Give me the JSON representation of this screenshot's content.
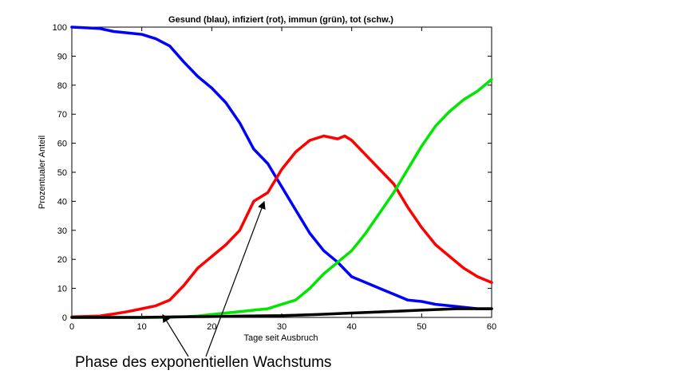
{
  "chart_data": {
    "type": "line",
    "title": "Gesund (blau), infiziert (rot), immun (grün), tot (schw.)",
    "xlabel": "Tage seit Ausbruch",
    "ylabel": "Prozentualer Anteil",
    "xlim": [
      0,
      60
    ],
    "ylim": [
      0,
      100
    ],
    "xticks": [
      0,
      10,
      20,
      30,
      40,
      50,
      60
    ],
    "yticks": [
      0,
      10,
      20,
      30,
      40,
      50,
      60,
      70,
      80,
      90,
      100
    ],
    "grid": false,
    "legend": "none",
    "series": [
      {
        "color": "#0000ff",
        "x": [
          0,
          4,
          6,
          8,
          10,
          12,
          14,
          16,
          18,
          20,
          22,
          24,
          26,
          28,
          30,
          32,
          34,
          36,
          38,
          40,
          42,
          44,
          46,
          48,
          50,
          52,
          54,
          56,
          58,
          60
        ],
        "y": [
          100,
          99.5,
          98.5,
          98,
          97.5,
          96,
          93.5,
          88,
          83,
          79,
          74,
          67,
          58,
          53,
          45,
          37,
          29,
          23,
          19,
          14,
          12,
          10,
          8,
          6,
          5.5,
          4.5,
          4,
          3.5,
          3,
          3
        ]
      },
      {
        "color": "#ff0000",
        "x": [
          0,
          4,
          6,
          8,
          10,
          12,
          14,
          16,
          18,
          20,
          22,
          24,
          26,
          28,
          30,
          32,
          34,
          36,
          38,
          39,
          40,
          42,
          44,
          46,
          48,
          50,
          52,
          54,
          56,
          58,
          60
        ],
        "y": [
          0.2,
          0.5,
          1.2,
          2,
          3,
          4,
          6,
          11,
          17,
          21,
          25,
          30,
          40,
          43,
          51,
          57,
          61,
          62.5,
          61.5,
          62.5,
          61,
          56,
          51,
          46,
          38,
          31,
          25,
          21,
          17,
          14,
          12
        ]
      },
      {
        "color": "#00e600",
        "x": [
          0,
          14,
          16,
          18,
          20,
          22,
          24,
          26,
          28,
          30,
          32,
          34,
          36,
          38,
          40,
          42,
          44,
          46,
          48,
          50,
          52,
          54,
          56,
          58,
          60
        ],
        "y": [
          0,
          0,
          0.2,
          0.5,
          1,
          1.5,
          2,
          2.5,
          3,
          4.5,
          6,
          10,
          15,
          19,
          23,
          29,
          36,
          43,
          51,
          59,
          66,
          71,
          75,
          78,
          82
        ]
      },
      {
        "color": "#000000",
        "x": [
          0,
          10,
          15,
          20,
          25,
          30,
          35,
          40,
          45,
          50,
          55,
          60
        ],
        "y": [
          0,
          0,
          0.2,
          0.3,
          0.5,
          0.6,
          1,
          1.5,
          2,
          2.5,
          3,
          3
        ]
      }
    ],
    "annotation": {
      "text": "Phase des exponentiellen Wachstums",
      "arrow_targets": [
        {
          "x": 13,
          "y": 2
        },
        {
          "x": 27.5,
          "y": 41
        }
      ]
    }
  }
}
